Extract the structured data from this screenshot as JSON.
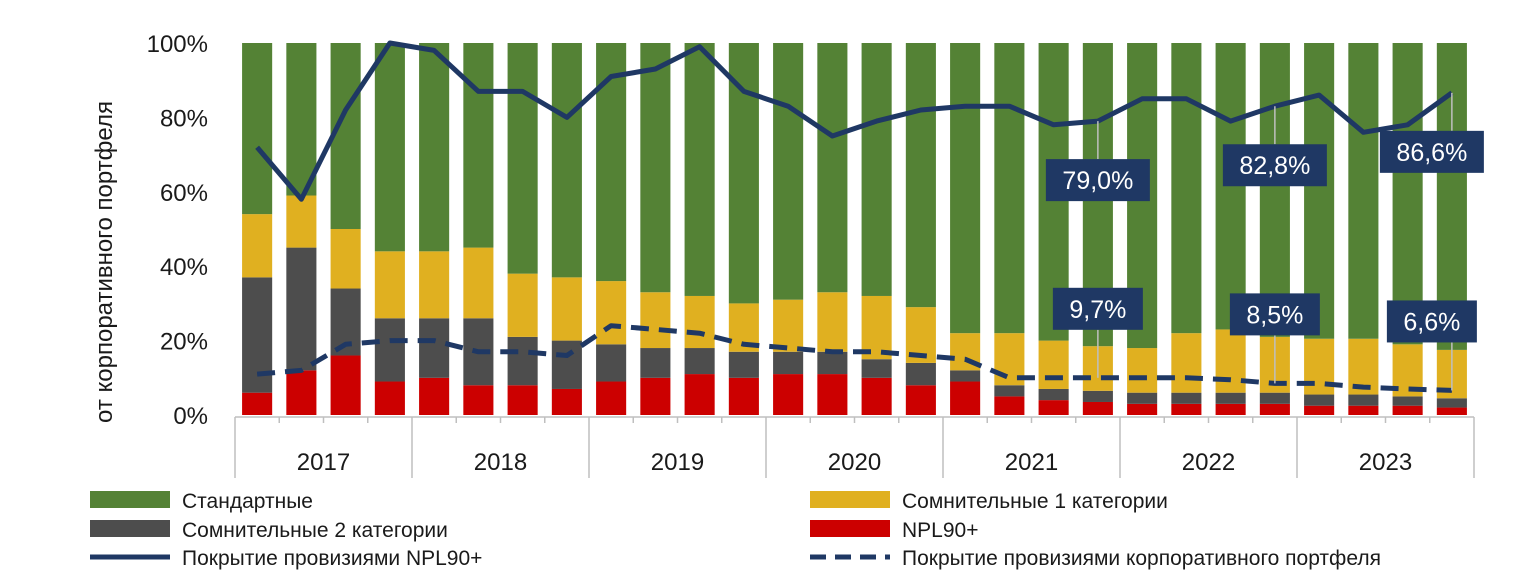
{
  "chart_data": {
    "type": "bar",
    "stacked": true,
    "ylabel": "от корпоративного портфеля",
    "ylim": [
      0,
      100
    ],
    "yticks": [
      "0%",
      "20%",
      "40%",
      "60%",
      "80%",
      "100%"
    ],
    "year_labels": [
      "2017",
      "2018",
      "2019",
      "2020",
      "2021",
      "2022",
      "2023"
    ],
    "categories": [
      "Q1 2017",
      "Q2 2017",
      "Q3 2017",
      "Q4 2017",
      "Q1 2018",
      "Q2 2018",
      "Q3 2018",
      "Q4 2018",
      "Q1 2019",
      "Q2 2019",
      "Q3 2019",
      "Q4 2019",
      "Q1 2020",
      "Q2 2020",
      "Q3 2020",
      "Q4 2020",
      "Q1 2021",
      "Q2 2021",
      "Q3 2021",
      "Q4 2021",
      "Q1 2022",
      "Q2 2022",
      "Q3 2022",
      "Q4 2022",
      "Q1 2023",
      "Q2 2023",
      "Q3 2023",
      "Q4 2023"
    ],
    "series": [
      {
        "name": "NPL90+",
        "color": "#cc0000",
        "values": [
          6,
          12,
          16,
          9,
          10,
          8,
          8,
          7,
          9,
          10,
          11,
          10,
          11,
          11,
          10,
          8,
          9,
          5,
          4,
          3.5,
          3,
          3,
          3,
          3,
          2.5,
          2.5,
          2.5,
          2
        ]
      },
      {
        "name": "Сомнительные 2 категории",
        "color": "#4d4d4d",
        "values": [
          31,
          33,
          18,
          17,
          16,
          18,
          13,
          13,
          10,
          8,
          7,
          7,
          6,
          6,
          5,
          6,
          3,
          3,
          3,
          3,
          3,
          3,
          3,
          3,
          3,
          3,
          2.5,
          2.5
        ]
      },
      {
        "name": "Сомнительные 1 категории",
        "color": "#e0b020",
        "values": [
          17,
          14,
          16,
          18,
          18,
          19,
          17,
          17,
          17,
          15,
          14,
          13,
          14,
          16,
          17,
          15,
          10,
          14,
          13,
          12,
          12,
          16,
          17,
          15,
          15,
          15,
          14,
          13
        ]
      },
      {
        "name": "Стандартные",
        "color": "#548235",
        "values": [
          46,
          41,
          50,
          56,
          56,
          55,
          62,
          63,
          64,
          67,
          68,
          70,
          69,
          67,
          68,
          71,
          78,
          78,
          80,
          81.5,
          82,
          78,
          77,
          79,
          79.5,
          79.5,
          81,
          82.5
        ]
      }
    ],
    "lines": [
      {
        "name": "Покрытие провизиями NPL90+",
        "color": "#1f3864",
        "style": "solid",
        "values": [
          72,
          58,
          82,
          100,
          98,
          87,
          87,
          80,
          91,
          93,
          99,
          87,
          83,
          75,
          79,
          82,
          83,
          83,
          78,
          79,
          85,
          85,
          79,
          83,
          86,
          76,
          78,
          86.6
        ]
      },
      {
        "name": "Покрытие провизиями корпоративного портфеля",
        "color": "#1f3864",
        "style": "dashed",
        "values": [
          11,
          12,
          19,
          20,
          20,
          17,
          17,
          16,
          24,
          23,
          22,
          19,
          18,
          17,
          17,
          16,
          15,
          10,
          10,
          10,
          10,
          10,
          9.5,
          8.5,
          8.5,
          7.5,
          7,
          6.6
        ]
      }
    ],
    "annotations": [
      {
        "text": "79,0%",
        "index": 19,
        "series": "line0"
      },
      {
        "text": "82,8%",
        "index": 23,
        "series": "line0"
      },
      {
        "text": "86,6%",
        "index": 27,
        "series": "line0"
      },
      {
        "text": "9,7%",
        "index": 19,
        "series": "line1"
      },
      {
        "text": "8,5%",
        "index": 23,
        "series": "line1"
      },
      {
        "text": "6,6%",
        "index": 27,
        "series": "line1"
      }
    ],
    "legend": [
      {
        "label": "Стандартные",
        "kind": "rect",
        "color": "#548235"
      },
      {
        "label": "Сомнительные 1 категории",
        "kind": "rect",
        "color": "#e0b020"
      },
      {
        "label": "Сомнительные 2 категории",
        "kind": "rect",
        "color": "#4d4d4d"
      },
      {
        "label": "NPL90+",
        "kind": "rect",
        "color": "#cc0000"
      },
      {
        "label": "Покрытие провизиями NPL90+",
        "kind": "solid",
        "color": "#1f3864"
      },
      {
        "label": "Покрытие провизиями корпоративного портфеля",
        "kind": "dashed",
        "color": "#1f3864"
      }
    ],
    "legend_placement": "bottom",
    "callout_color": "#1f3864"
  }
}
